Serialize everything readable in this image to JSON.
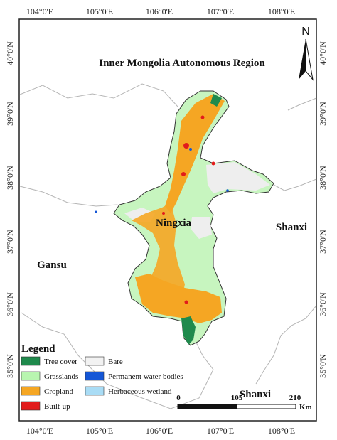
{
  "map": {
    "top_ticks": [
      "104°0'E",
      "105°0'E",
      "106°0'E",
      "107°0'E",
      "108°0'E"
    ],
    "bottom_ticks": [
      "104°0'E",
      "105°0'E",
      "106°0'E",
      "107°0'E",
      "108°0'E"
    ],
    "left_ticks": [
      "40°0'N",
      "39°0'N",
      "38°0'N",
      "37°0'N",
      "36°0'N",
      "35°0'N"
    ],
    "right_ticks": [
      "40°0'N",
      "39°0'N",
      "38°0'N",
      "37°0'N",
      "36°0'N",
      "35°0'N"
    ],
    "regions": {
      "inner_mongolia": "Inner Mongolia Autonomous Region",
      "ningxia": "Ningxia",
      "gansu": "Gansu",
      "shanxi_right": "Shanxi",
      "shanxi_bottom": "Shanxi"
    },
    "north_arrow": "N",
    "legend": {
      "title": "Legend",
      "items": [
        {
          "label": "Tree cover",
          "color": "#1f8a4c"
        },
        {
          "label": "Grasslands",
          "color": "#b8f5b0"
        },
        {
          "label": "Cropland",
          "color": "#f5a623"
        },
        {
          "label": "Built-up",
          "color": "#e21b1b"
        },
        {
          "label": "Bare",
          "color": "#f2f2f2"
        },
        {
          "label": "Permanent water bodies",
          "color": "#1456d6"
        },
        {
          "label": "Herbaceous wetland",
          "color": "#a9dcf5"
        }
      ]
    },
    "scale_bar": {
      "labels": [
        "0",
        "105",
        "210"
      ],
      "unit": "Km"
    }
  }
}
